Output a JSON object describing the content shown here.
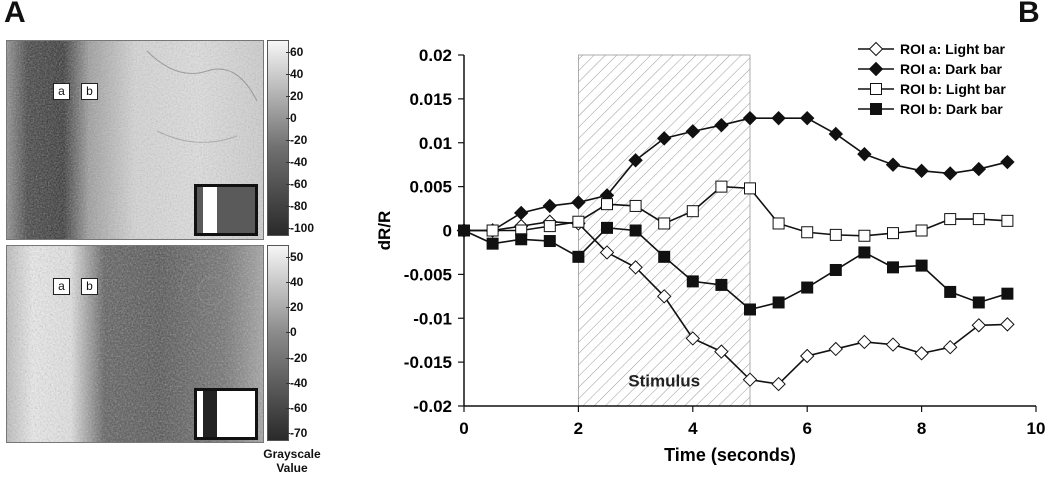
{
  "panel_a": {
    "letter": "A",
    "roi_a": "a",
    "roi_b": "b",
    "colorbar_top_ticks": [
      "60",
      "40",
      "20",
      "0",
      "-20",
      "-40",
      "-60",
      "-80",
      "-100"
    ],
    "colorbar_bottom_ticks": [
      "50",
      "40",
      "20",
      "0",
      "-20",
      "-40",
      "-60",
      "-70"
    ],
    "colorbar_label_line1": "Grayscale",
    "colorbar_label_line2": "Value"
  },
  "panel_b": {
    "letter": "B"
  },
  "chart_data": {
    "type": "line",
    "title": "",
    "xlabel": "Time (seconds)",
    "ylabel": "dR/R",
    "xlim": [
      0,
      10
    ],
    "ylim": [
      -0.02,
      0.02
    ],
    "x_ticks": [
      "0",
      "2",
      "4",
      "6",
      "8",
      "10"
    ],
    "x_tick_values": [
      0,
      2,
      4,
      6,
      8,
      10
    ],
    "y_ticks": [
      "0.02",
      "0.015",
      "0.01",
      "0.005",
      "0",
      "-0.005",
      "-0.01",
      "-0.015",
      "-0.02"
    ],
    "y_tick_values": [
      0.02,
      0.015,
      0.01,
      0.005,
      0,
      -0.005,
      -0.01,
      -0.015,
      -0.02
    ],
    "stimulus": {
      "label": "Stimulus",
      "start": 2,
      "end": 5
    },
    "legend_position": "top-right",
    "x": [
      0,
      0.5,
      1,
      1.5,
      2,
      2.5,
      3,
      3.5,
      4,
      4.5,
      5,
      5.5,
      6,
      6.5,
      7,
      7.5,
      8,
      8.5,
      9,
      9.5
    ],
    "series": [
      {
        "name": "ROI a: Light bar",
        "marker": "open-diamond",
        "values": [
          0,
          0,
          0.0005,
          0.001,
          0.0008,
          -0.0025,
          -0.0042,
          -0.0075,
          -0.0123,
          -0.0138,
          -0.017,
          -0.0175,
          -0.0143,
          -0.0135,
          -0.0127,
          -0.013,
          -0.014,
          -0.0133,
          -0.0108,
          -0.0107
        ]
      },
      {
        "name": "ROI a: Dark bar",
        "marker": "filled-diamond",
        "values": [
          0,
          0,
          0.002,
          0.0028,
          0.0032,
          0.004,
          0.008,
          0.0105,
          0.0113,
          0.012,
          0.0128,
          0.0128,
          0.0128,
          0.011,
          0.0087,
          0.0075,
          0.0068,
          0.0065,
          0.007,
          0.0078
        ]
      },
      {
        "name": "ROI b: Light bar",
        "marker": "open-square",
        "values": [
          0,
          0,
          0,
          0.0005,
          0.001,
          0.003,
          0.0028,
          0.0008,
          0.0022,
          0.005,
          0.0048,
          0.0008,
          -0.0002,
          -0.0005,
          -0.0006,
          -0.0003,
          0,
          0.0013,
          0.0013,
          0.0011
        ]
      },
      {
        "name": "ROI b: Dark bar",
        "marker": "filled-square",
        "values": [
          0,
          -0.0015,
          -0.001,
          -0.0012,
          -0.003,
          0.0003,
          0,
          -0.003,
          -0.0058,
          -0.0062,
          -0.009,
          -0.0082,
          -0.0065,
          -0.0045,
          -0.0025,
          -0.0042,
          -0.004,
          -0.007,
          -0.0082,
          -0.0072
        ]
      }
    ]
  }
}
